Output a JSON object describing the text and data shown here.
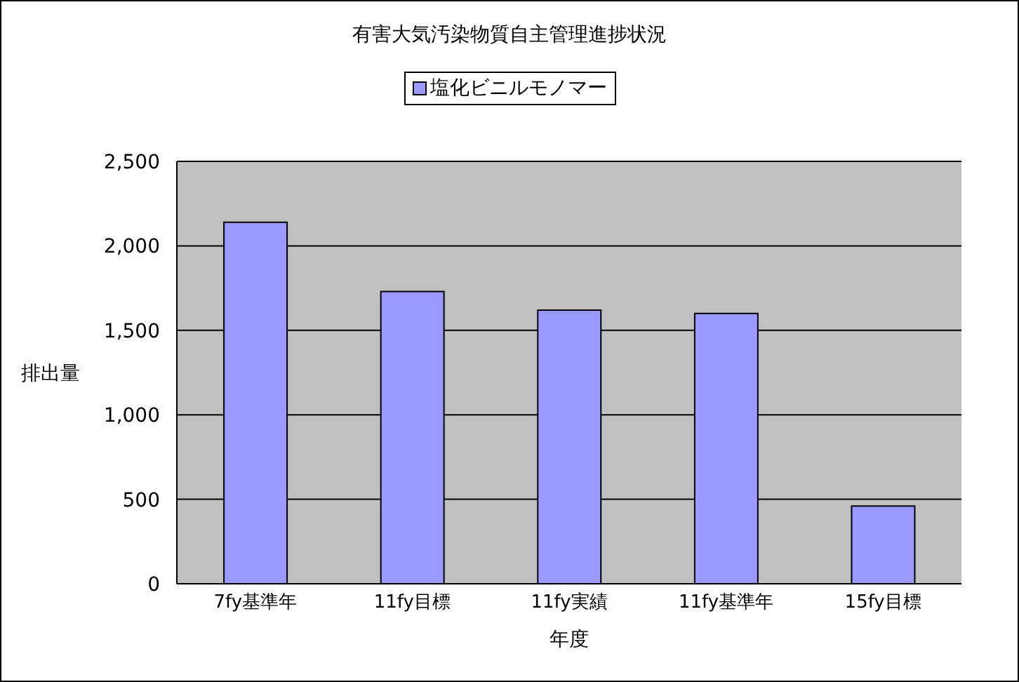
{
  "chart_data": {
    "type": "bar",
    "title": "有害大気汚染物質自主管理進捗状況",
    "xlabel": "年度",
    "ylabel": "排出量",
    "categories": [
      "7fy基準年",
      "11fy目標",
      "11fy実績",
      "11fy基準年",
      "15fy目標"
    ],
    "series": [
      {
        "name": "塩化ビニルモノマー",
        "color": "#9999ff",
        "values": [
          2140,
          1730,
          1620,
          1600,
          460
        ]
      }
    ],
    "ylim": [
      0,
      2500
    ],
    "yticks": [
      0,
      500,
      {
        "value": 1000,
        "label": "1,000"
      },
      {
        "value": 1500,
        "label": "1,500"
      },
      {
        "value": 2000,
        "label": "2,000"
      },
      {
        "value": 2500,
        "label": "2,500"
      }
    ],
    "grid": "y",
    "legend": "top"
  }
}
